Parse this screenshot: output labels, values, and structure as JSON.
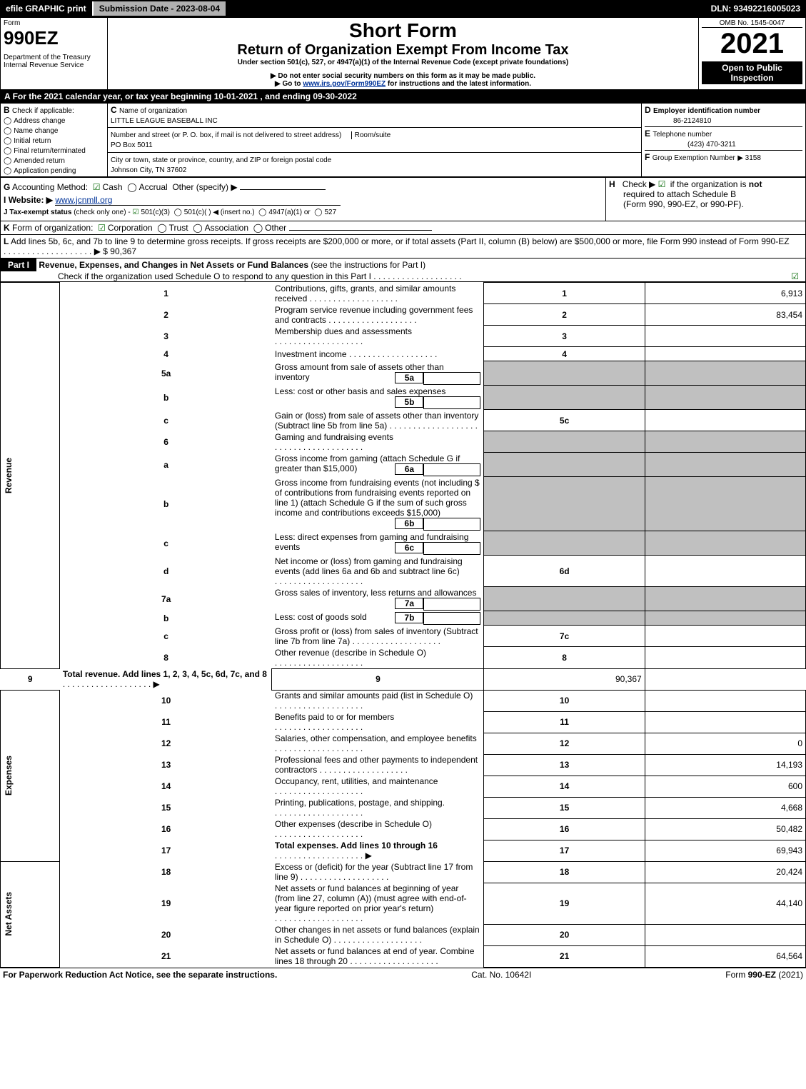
{
  "topbar": {
    "efile": "efile GRAPHIC print",
    "submission_label": "Submission Date - 2023-08-04",
    "dln": "DLN: 93492216005023"
  },
  "header": {
    "form_word": "Form",
    "form_number": "990EZ",
    "dept": "Department of the Treasury",
    "irs": "Internal Revenue Service",
    "short_form": "Short Form",
    "title": "Return of Organization Exempt From Income Tax",
    "under": "Under section 501(c), 527, or 4947(a)(1) of the Internal Revenue Code (except private foundations)",
    "ssn_warning": "▶ Do not enter social security numbers on this form as it may be made public.",
    "goto": "▶ Go to www.irs.gov/Form990EZ for instructions and the latest information.",
    "goto_prefix": "▶ Go to ",
    "goto_link": "www.irs.gov/Form990EZ",
    "goto_suffix": " for instructions and the latest information.",
    "omb": "OMB No. 1545-0047",
    "year": "2021",
    "open_to": "Open to Public Inspection"
  },
  "lineA": {
    "letter": "A",
    "text": "For the 2021 calendar year, or tax year beginning 10-01-2021 , and ending 09-30-2022"
  },
  "B": {
    "letter": "B",
    "label": "Check if applicable:",
    "items": [
      "Address change",
      "Name change",
      "Initial return",
      "Final return/terminated",
      "Amended return",
      "Application pending"
    ]
  },
  "C": {
    "letter": "C",
    "name_label": "Name of organization",
    "org_name": "LITTLE LEAGUE BASEBALL INC",
    "addr_label": "Number and street (or P. O. box, if mail is not delivered to street address)",
    "room_label": "Room/suite",
    "street": "PO Box 5011",
    "city_label": "City or town, state or province, country, and ZIP or foreign postal code",
    "city": "Johnson City, TN  37602"
  },
  "D": {
    "letter": "D",
    "label": "Employer identification number",
    "value": "86-2124810"
  },
  "E": {
    "letter": "E",
    "label": "Telephone number",
    "value": "(423) 470-3211"
  },
  "F": {
    "letter": "F",
    "label": "Group Exemption Number",
    "value": "▶ 3158"
  },
  "G": {
    "letter": "G",
    "label": "Accounting Method:",
    "cash": "Cash",
    "accrual": "Accrual",
    "other": "Other (specify) ▶"
  },
  "H": {
    "letter": "H",
    "text1": "Check ▶",
    "text2": "if the organization is",
    "text3": "not",
    "text4": "required to attach Schedule B",
    "text5": "(Form 990, 990-EZ, or 990-PF)."
  },
  "I": {
    "letter": "I",
    "label": "Website: ▶",
    "value": "www.jcnmll.org"
  },
  "J": {
    "letter": "J",
    "label": "Tax-exempt status",
    "sub": "(check only one) -",
    "opt1": "501(c)(3)",
    "opt2": "501(c)(  ) ◀ (insert no.)",
    "opt3": "4947(a)(1) or",
    "opt4": "527"
  },
  "K": {
    "letter": "K",
    "label": "Form of organization:",
    "corp": "Corporation",
    "trust": "Trust",
    "assoc": "Association",
    "other": "Other"
  },
  "L": {
    "letter": "L",
    "text": "Add lines 5b, 6c, and 7b to line 9 to determine gross receipts. If gross receipts are $200,000 or more, or if total assets (Part II, column (B) below) are $500,000 or more, file Form 990 instead of Form 990-EZ",
    "arrow": "▶ $",
    "amount": "90,367"
  },
  "part1": {
    "label": "Part I",
    "title": "Revenue, Expenses, and Changes in Net Assets or Fund Balances",
    "sub": "(see the instructions for Part I)",
    "check_text": "Check if the organization used Schedule O to respond to any question in this Part I"
  },
  "sections": {
    "revenue": "Revenue",
    "expenses": "Expenses",
    "netassets": "Net Assets"
  },
  "lines": [
    {
      "n": "1",
      "label": "Contributions, gifts, grants, and similar amounts received",
      "box": "1",
      "amt": "6,913"
    },
    {
      "n": "2",
      "label": "Program service revenue including government fees and contracts",
      "box": "2",
      "amt": "83,454"
    },
    {
      "n": "3",
      "label": "Membership dues and assessments",
      "box": "3",
      "amt": ""
    },
    {
      "n": "4",
      "label": "Investment income",
      "box": "4",
      "amt": ""
    },
    {
      "n": "5a",
      "label": "Gross amount from sale of assets other than inventory",
      "inbox": "5a",
      "inamt": "",
      "shade": true
    },
    {
      "n": "b",
      "label": "Less: cost or other basis and sales expenses",
      "inbox": "5b",
      "inamt": "",
      "shade": true
    },
    {
      "n": "c",
      "label": "Gain or (loss) from sale of assets other than inventory (Subtract line 5b from line 5a)",
      "box": "5c",
      "amt": ""
    },
    {
      "n": "6",
      "label": "Gaming and fundraising events",
      "shade": true,
      "noboxright": true
    },
    {
      "n": "a",
      "label": "Gross income from gaming (attach Schedule G if greater than $15,000)",
      "inbox": "6a",
      "inamt": "",
      "shade": true
    },
    {
      "n": "b",
      "label": "Gross income from fundraising events (not including $                       of contributions from fundraising events reported on line 1) (attach Schedule G if the sum of such gross income and contributions exceeds $15,000)",
      "inbox": "6b",
      "inamt": "",
      "shade": true
    },
    {
      "n": "c",
      "label": "Less: direct expenses from gaming and fundraising events",
      "inbox": "6c",
      "inamt": "",
      "shade": true
    },
    {
      "n": "d",
      "label": "Net income or (loss) from gaming and fundraising events (add lines 6a and 6b and subtract line 6c)",
      "box": "6d",
      "amt": ""
    },
    {
      "n": "7a",
      "label": "Gross sales of inventory, less returns and allowances",
      "inbox": "7a",
      "inamt": "",
      "shade": true
    },
    {
      "n": "b",
      "label": "Less: cost of goods sold",
      "inbox": "7b",
      "inamt": "",
      "shade": true
    },
    {
      "n": "c",
      "label": "Gross profit or (loss) from sales of inventory (Subtract line 7b from line 7a)",
      "box": "7c",
      "amt": ""
    },
    {
      "n": "8",
      "label": "Other revenue (describe in Schedule O)",
      "box": "8",
      "amt": ""
    },
    {
      "n": "9",
      "label": "Total revenue. Add lines 1, 2, 3, 4, 5c, 6d, 7c, and 8",
      "box": "9",
      "amt": "90,367",
      "bold": true,
      "arrow": true
    }
  ],
  "exp_lines": [
    {
      "n": "10",
      "label": "Grants and similar amounts paid (list in Schedule O)",
      "box": "10",
      "amt": ""
    },
    {
      "n": "11",
      "label": "Benefits paid to or for members",
      "box": "11",
      "amt": ""
    },
    {
      "n": "12",
      "label": "Salaries, other compensation, and employee benefits",
      "box": "12",
      "amt": "0"
    },
    {
      "n": "13",
      "label": "Professional fees and other payments to independent contractors",
      "box": "13",
      "amt": "14,193"
    },
    {
      "n": "14",
      "label": "Occupancy, rent, utilities, and maintenance",
      "box": "14",
      "amt": "600"
    },
    {
      "n": "15",
      "label": "Printing, publications, postage, and shipping.",
      "box": "15",
      "amt": "4,668"
    },
    {
      "n": "16",
      "label": "Other expenses (describe in Schedule O)",
      "box": "16",
      "amt": "50,482"
    },
    {
      "n": "17",
      "label": "Total expenses. Add lines 10 through 16",
      "box": "17",
      "amt": "69,943",
      "bold": true,
      "arrow": true
    }
  ],
  "na_lines": [
    {
      "n": "18",
      "label": "Excess or (deficit) for the year (Subtract line 17 from line 9)",
      "box": "18",
      "amt": "20,424"
    },
    {
      "n": "19",
      "label": "Net assets or fund balances at beginning of year (from line 27, column (A)) (must agree with end-of-year figure reported on prior year's return)",
      "box": "19",
      "amt": "44,140"
    },
    {
      "n": "20",
      "label": "Other changes in net assets or fund balances (explain in Schedule O)",
      "box": "20",
      "amt": ""
    },
    {
      "n": "21",
      "label": "Net assets or fund balances at end of year. Combine lines 18 through 20",
      "box": "21",
      "amt": "64,564"
    }
  ],
  "footer": {
    "left": "For Paperwork Reduction Act Notice, see the separate instructions.",
    "mid": "Cat. No. 10642I",
    "right_prefix": "Form ",
    "right_form": "990-EZ",
    "right_suffix": " (2021)"
  }
}
